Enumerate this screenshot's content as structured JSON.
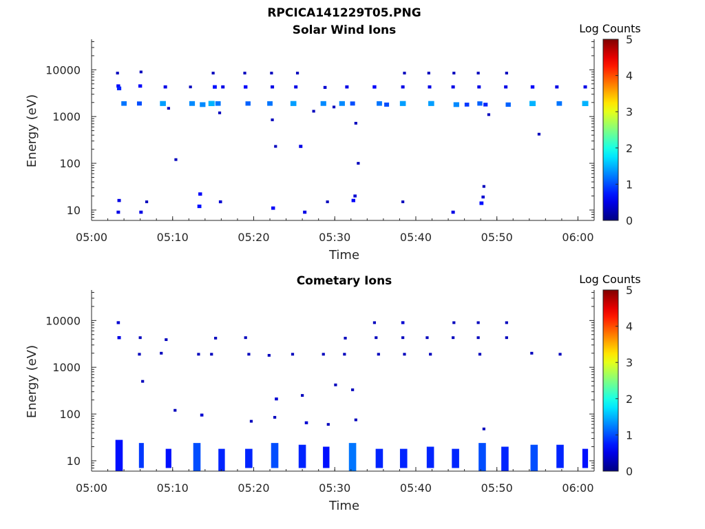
{
  "figure_title": "RPCICA141229T05.PNG",
  "colors": {
    "background": "#ffffff",
    "axis": "#262626",
    "colormap": "jet",
    "colormap_stops": [
      "#00008f",
      "#0000ff",
      "#0080ff",
      "#00ffff",
      "#80ff80",
      "#ffff00",
      "#ff8000",
      "#ff0000",
      "#800000"
    ]
  },
  "chart_data": [
    {
      "type": "heatmap",
      "title": "Solar Wind Ions",
      "xlabel": "Time",
      "ylabel": "Energy (eV)",
      "y_scale": "log",
      "ylim": [
        6,
        45000
      ],
      "xlim": [
        "05:00",
        "06:02"
      ],
      "x_ticks": [
        "05:00",
        "05:10",
        "05:20",
        "05:30",
        "05:40",
        "05:50",
        "06:00"
      ],
      "y_ticks": [
        "10",
        "100",
        "1000",
        "10000"
      ],
      "colorbar": {
        "label": "Log Counts",
        "ticks": [
          "0",
          "1",
          "2",
          "3",
          "4",
          "5"
        ],
        "range": [
          0,
          5
        ]
      },
      "points": [
        {
          "t": "05:03.2",
          "e": 8500,
          "v": 0.3
        },
        {
          "t": "05:03.3",
          "e": 4500,
          "v": 0.6
        },
        {
          "t": "05:03.4",
          "e": 4000,
          "v": 0.8
        },
        {
          "t": "05:04.0",
          "e": 1900,
          "v": 1.2
        },
        {
          "t": "05:06.1",
          "e": 9000,
          "v": 0.3
        },
        {
          "t": "05:06.0",
          "e": 4500,
          "v": 0.6
        },
        {
          "t": "05:05.9",
          "e": 1900,
          "v": 1.0
        },
        {
          "t": "05:09.1",
          "e": 4300,
          "v": 0.5
        },
        {
          "t": "05:08.8",
          "e": 1900,
          "v": 1.4
        },
        {
          "t": "05:09.5",
          "e": 1500,
          "v": 0.3
        },
        {
          "t": "05:12.2",
          "e": 4300,
          "v": 0.3
        },
        {
          "t": "05:12.4",
          "e": 1900,
          "v": 1.3
        },
        {
          "t": "05:15.0",
          "e": 8500,
          "v": 0.3
        },
        {
          "t": "05:15.2",
          "e": 4300,
          "v": 0.7
        },
        {
          "t": "05:14.8",
          "e": 1900,
          "v": 1.5
        },
        {
          "t": "05:15.6",
          "e": 1900,
          "v": 1.2
        },
        {
          "t": "05:16.2",
          "e": 4300,
          "v": 0.5
        },
        {
          "t": "05:13.7",
          "e": 1800,
          "v": 1.3
        },
        {
          "t": "05:15.8",
          "e": 1200,
          "v": 0.3
        },
        {
          "t": "05:18.9",
          "e": 8500,
          "v": 0.3
        },
        {
          "t": "05:19.0",
          "e": 4300,
          "v": 0.6
        },
        {
          "t": "05:19.3",
          "e": 1900,
          "v": 1.1
        },
        {
          "t": "05:22.2",
          "e": 8500,
          "v": 0.3
        },
        {
          "t": "05:22.3",
          "e": 4300,
          "v": 0.5
        },
        {
          "t": "05:22.0",
          "e": 1900,
          "v": 1.2
        },
        {
          "t": "05:25.4",
          "e": 8500,
          "v": 0.3
        },
        {
          "t": "05:25.2",
          "e": 4300,
          "v": 0.5
        },
        {
          "t": "05:24.9",
          "e": 1900,
          "v": 1.4
        },
        {
          "t": "05:27.4",
          "e": 1300,
          "v": 0.3
        },
        {
          "t": "05:28.8",
          "e": 4200,
          "v": 0.4
        },
        {
          "t": "05:28.6",
          "e": 1900,
          "v": 1.3
        },
        {
          "t": "05:29.9",
          "e": 1600,
          "v": 0.3
        },
        {
          "t": "05:31.5",
          "e": 4300,
          "v": 0.5
        },
        {
          "t": "05:30.9",
          "e": 1900,
          "v": 1.3
        },
        {
          "t": "05:32.2",
          "e": 1900,
          "v": 1.0
        },
        {
          "t": "05:34.9",
          "e": 4300,
          "v": 0.6
        },
        {
          "t": "05:35.5",
          "e": 1900,
          "v": 1.2
        },
        {
          "t": "05:36.4",
          "e": 1800,
          "v": 1.0
        },
        {
          "t": "05:38.6",
          "e": 8500,
          "v": 0.3
        },
        {
          "t": "05:38.4",
          "e": 4300,
          "v": 0.5
        },
        {
          "t": "05:38.4",
          "e": 1900,
          "v": 1.4
        },
        {
          "t": "05:41.6",
          "e": 8500,
          "v": 0.3
        },
        {
          "t": "05:41.7",
          "e": 4300,
          "v": 0.5
        },
        {
          "t": "05:41.9",
          "e": 1900,
          "v": 1.4
        },
        {
          "t": "05:44.7",
          "e": 8500,
          "v": 0.3
        },
        {
          "t": "05:44.6",
          "e": 4300,
          "v": 0.5
        },
        {
          "t": "05:45.0",
          "e": 1800,
          "v": 1.3
        },
        {
          "t": "05:46.3",
          "e": 1800,
          "v": 0.9
        },
        {
          "t": "05:47.7",
          "e": 8500,
          "v": 0.3
        },
        {
          "t": "05:47.8",
          "e": 4300,
          "v": 0.5
        },
        {
          "t": "05:47.9",
          "e": 1900,
          "v": 1.1
        },
        {
          "t": "05:48.6",
          "e": 1800,
          "v": 0.8
        },
        {
          "t": "05:49.0",
          "e": 1100,
          "v": 0.3
        },
        {
          "t": "05:51.2",
          "e": 8500,
          "v": 0.3
        },
        {
          "t": "05:51.1",
          "e": 4300,
          "v": 0.5
        },
        {
          "t": "05:51.4",
          "e": 1800,
          "v": 1.1
        },
        {
          "t": "05:54.4",
          "e": 4300,
          "v": 0.6
        },
        {
          "t": "05:54.4",
          "e": 1900,
          "v": 1.5
        },
        {
          "t": "05:57.4",
          "e": 4300,
          "v": 0.5
        },
        {
          "t": "05:57.7",
          "e": 1900,
          "v": 1.2
        },
        {
          "t": "06:00.9",
          "e": 4300,
          "v": 0.5
        },
        {
          "t": "06:00.9",
          "e": 1900,
          "v": 1.5
        },
        {
          "t": "05:22.3",
          "e": 850,
          "v": 0.3
        },
        {
          "t": "05:32.6",
          "e": 720,
          "v": 0.3
        },
        {
          "t": "05:22.7",
          "e": 230,
          "v": 0.3
        },
        {
          "t": "05:25.8",
          "e": 230,
          "v": 0.5
        },
        {
          "t": "05:55.2",
          "e": 420,
          "v": 0.3
        },
        {
          "t": "05:10.4",
          "e": 120,
          "v": 0.3
        },
        {
          "t": "05:32.9",
          "e": 100,
          "v": 0.3
        },
        {
          "t": "05:03.3",
          "e": 9,
          "v": 0.5
        },
        {
          "t": "05:03.4",
          "e": 16,
          "v": 0.5
        },
        {
          "t": "05:06.1",
          "e": 9,
          "v": 0.5
        },
        {
          "t": "05:06.8",
          "e": 15,
          "v": 0.3
        },
        {
          "t": "05:13.3",
          "e": 12,
          "v": 0.7
        },
        {
          "t": "05:13.4",
          "e": 22,
          "v": 0.6
        },
        {
          "t": "05:15.9",
          "e": 15,
          "v": 0.4
        },
        {
          "t": "05:22.4",
          "e": 11,
          "v": 0.6
        },
        {
          "t": "05:26.3",
          "e": 9,
          "v": 0.5
        },
        {
          "t": "05:29.1",
          "e": 15,
          "v": 0.3
        },
        {
          "t": "05:32.3",
          "e": 16,
          "v": 0.6
        },
        {
          "t": "05:32.5",
          "e": 20,
          "v": 0.4
        },
        {
          "t": "05:38.4",
          "e": 15,
          "v": 0.3
        },
        {
          "t": "05:44.6",
          "e": 9,
          "v": 0.5
        },
        {
          "t": "05:48.1",
          "e": 14,
          "v": 0.7
        },
        {
          "t": "05:48.3",
          "e": 19,
          "v": 0.4
        },
        {
          "t": "05:48.4",
          "e": 32,
          "v": 0.3
        }
      ]
    },
    {
      "type": "heatmap",
      "title": "Cometary Ions",
      "xlabel": "Time",
      "ylabel": "Energy (eV)",
      "y_scale": "log",
      "ylim": [
        6,
        45000
      ],
      "xlim": [
        "05:00",
        "06:02"
      ],
      "x_ticks": [
        "05:00",
        "05:10",
        "05:20",
        "05:30",
        "05:40",
        "05:50",
        "06:00"
      ],
      "y_ticks": [
        "10",
        "100",
        "1000",
        "10000"
      ],
      "colorbar": {
        "label": "Log Counts",
        "ticks": [
          "0",
          "1",
          "2",
          "3",
          "4",
          "5"
        ],
        "range": [
          0,
          5
        ]
      },
      "points": [
        {
          "t": "05:03.3",
          "e": 9000,
          "v": 0.4
        },
        {
          "t": "05:03.4",
          "e": 4300,
          "v": 0.5
        },
        {
          "t": "05:06.0",
          "e": 4300,
          "v": 0.3
        },
        {
          "t": "05:05.9",
          "e": 1900,
          "v": 0.3
        },
        {
          "t": "05:09.2",
          "e": 3900,
          "v": 0.3
        },
        {
          "t": "05:08.6",
          "e": 2000,
          "v": 0.3
        },
        {
          "t": "05:06.3",
          "e": 500,
          "v": 0.3
        },
        {
          "t": "05:10.3",
          "e": 120,
          "v": 0.3
        },
        {
          "t": "05:13.2",
          "e": 1900,
          "v": 0.3
        },
        {
          "t": "05:15.3",
          "e": 4200,
          "v": 0.3
        },
        {
          "t": "05:14.8",
          "e": 1900,
          "v": 0.3
        },
        {
          "t": "05:19.0",
          "e": 4300,
          "v": 0.3
        },
        {
          "t": "05:19.4",
          "e": 1900,
          "v": 0.3
        },
        {
          "t": "05:21.9",
          "e": 1800,
          "v": 0.3
        },
        {
          "t": "05:24.8",
          "e": 1900,
          "v": 0.3
        },
        {
          "t": "05:28.6",
          "e": 1900,
          "v": 0.3
        },
        {
          "t": "05:31.2",
          "e": 1900,
          "v": 0.3
        },
        {
          "t": "05:31.3",
          "e": 4200,
          "v": 0.3
        },
        {
          "t": "05:34.9",
          "e": 9000,
          "v": 0.3
        },
        {
          "t": "05:35.1",
          "e": 4300,
          "v": 0.3
        },
        {
          "t": "05:35.4",
          "e": 1900,
          "v": 0.3
        },
        {
          "t": "05:38.4",
          "e": 9000,
          "v": 0.4
        },
        {
          "t": "05:38.4",
          "e": 4300,
          "v": 0.3
        },
        {
          "t": "05:38.6",
          "e": 1900,
          "v": 0.3
        },
        {
          "t": "05:41.4",
          "e": 4300,
          "v": 0.3
        },
        {
          "t": "05:41.8",
          "e": 1900,
          "v": 0.3
        },
        {
          "t": "05:44.7",
          "e": 9000,
          "v": 0.3
        },
        {
          "t": "05:44.6",
          "e": 4300,
          "v": 0.3
        },
        {
          "t": "05:47.7",
          "e": 9000,
          "v": 0.3
        },
        {
          "t": "05:47.7",
          "e": 4300,
          "v": 0.3
        },
        {
          "t": "05:47.9",
          "e": 1900,
          "v": 0.3
        },
        {
          "t": "05:51.2",
          "e": 9000,
          "v": 0.3
        },
        {
          "t": "05:51.2",
          "e": 4300,
          "v": 0.3
        },
        {
          "t": "05:54.3",
          "e": 2000,
          "v": 0.3
        },
        {
          "t": "05:57.8",
          "e": 1900,
          "v": 0.3
        },
        {
          "t": "05:22.8",
          "e": 210,
          "v": 0.4
        },
        {
          "t": "05:26.0",
          "e": 250,
          "v": 0.3
        },
        {
          "t": "05:30.1",
          "e": 420,
          "v": 0.3
        },
        {
          "t": "05:32.2",
          "e": 330,
          "v": 0.3
        },
        {
          "t": "05:13.6",
          "e": 95,
          "v": 0.4
        },
        {
          "t": "05:22.6",
          "e": 85,
          "v": 0.3
        },
        {
          "t": "05:19.7",
          "e": 70,
          "v": 0.3
        },
        {
          "t": "05:26.5",
          "e": 65,
          "v": 0.4
        },
        {
          "t": "05:29.2",
          "e": 60,
          "v": 0.3
        },
        {
          "t": "05:32.6",
          "e": 75,
          "v": 0.3
        },
        {
          "t": "05:48.4",
          "e": 48,
          "v": 0.3
        }
      ],
      "bands": [
        {
          "t": "05:03.2",
          "w": 0.9,
          "lo": 6,
          "hi": 28,
          "v": 0.7
        },
        {
          "t": "05:06.1",
          "w": 0.6,
          "lo": 7,
          "hi": 24,
          "v": 0.9
        },
        {
          "t": "05:09.4",
          "w": 0.7,
          "lo": 7,
          "hi": 18,
          "v": 0.7
        },
        {
          "t": "05:12.8",
          "w": 0.9,
          "lo": 6,
          "hi": 24,
          "v": 1.0
        },
        {
          "t": "05:15.9",
          "w": 0.8,
          "lo": 6,
          "hi": 18,
          "v": 0.8
        },
        {
          "t": "05:19.2",
          "w": 0.9,
          "lo": 7,
          "hi": 18,
          "v": 0.8
        },
        {
          "t": "05:22.4",
          "w": 0.9,
          "lo": 7,
          "hi": 24,
          "v": 1.0
        },
        {
          "t": "05:25.8",
          "w": 0.9,
          "lo": 7,
          "hi": 22,
          "v": 0.8
        },
        {
          "t": "05:28.8",
          "w": 0.8,
          "lo": 7,
          "hi": 20,
          "v": 0.7
        },
        {
          "t": "05:32.0",
          "w": 0.9,
          "lo": 6,
          "hi": 24,
          "v": 1.2
        },
        {
          "t": "05:35.3",
          "w": 0.9,
          "lo": 7,
          "hi": 18,
          "v": 0.8
        },
        {
          "t": "05:38.3",
          "w": 0.9,
          "lo": 7,
          "hi": 18,
          "v": 0.8
        },
        {
          "t": "05:41.6",
          "w": 0.9,
          "lo": 7,
          "hi": 20,
          "v": 0.8
        },
        {
          "t": "05:44.7",
          "w": 0.9,
          "lo": 7,
          "hi": 18,
          "v": 0.8
        },
        {
          "t": "05:48.0",
          "w": 0.9,
          "lo": 6,
          "hi": 24,
          "v": 1.0
        },
        {
          "t": "05:50.8",
          "w": 0.9,
          "lo": 6,
          "hi": 20,
          "v": 0.8
        },
        {
          "t": "05:54.4",
          "w": 0.9,
          "lo": 6,
          "hi": 22,
          "v": 1.0
        },
        {
          "t": "05:57.6",
          "w": 0.9,
          "lo": 7,
          "hi": 22,
          "v": 0.8
        },
        {
          "t": "06:00.8",
          "w": 0.7,
          "lo": 7,
          "hi": 18,
          "v": 0.7
        }
      ]
    }
  ]
}
